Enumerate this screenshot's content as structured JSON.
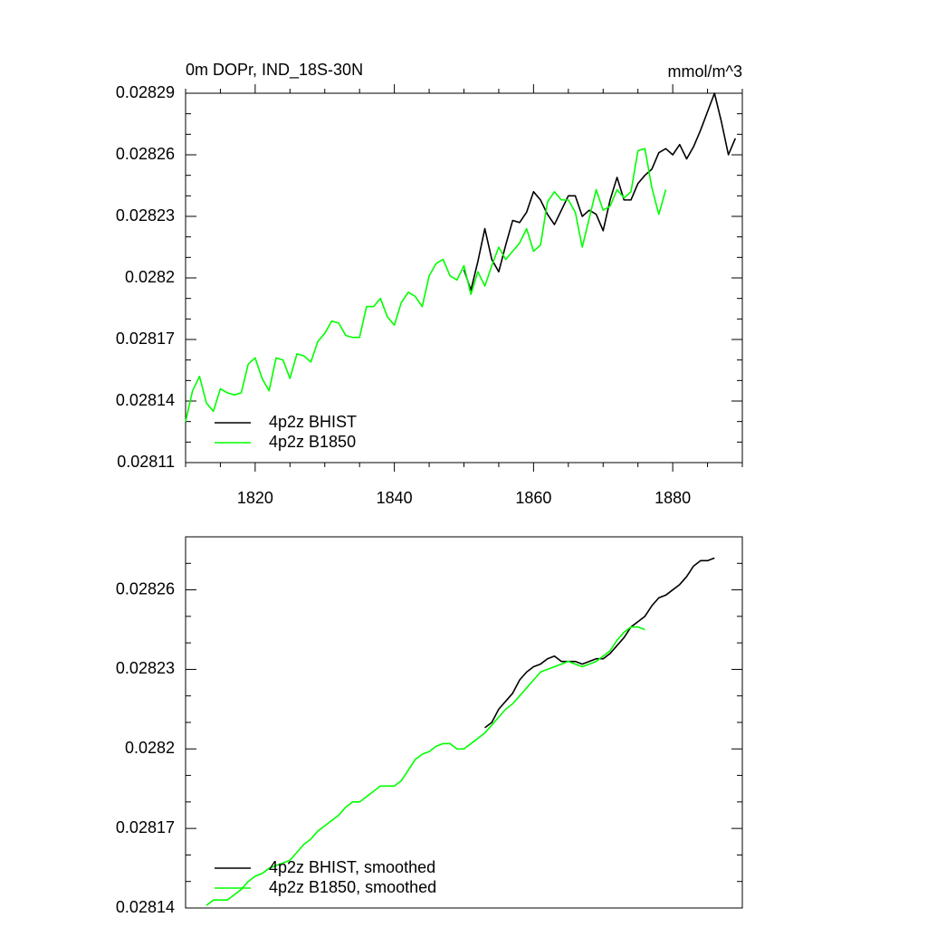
{
  "chart_data": [
    {
      "type": "line",
      "title": "0m DOPr, IND_18S-30N",
      "units_label": "mmol/m^3",
      "x": [
        1810,
        1811,
        1812,
        1813,
        1814,
        1815,
        1816,
        1817,
        1818,
        1819,
        1820,
        1821,
        1822,
        1823,
        1824,
        1825,
        1826,
        1827,
        1828,
        1829,
        1830,
        1831,
        1832,
        1833,
        1834,
        1835,
        1836,
        1837,
        1838,
        1839,
        1840,
        1841,
        1842,
        1843,
        1844,
        1845,
        1846,
        1847,
        1848,
        1849,
        1850,
        1851,
        1852,
        1853,
        1854,
        1855,
        1856,
        1857,
        1858,
        1859,
        1860,
        1861,
        1862,
        1863,
        1864,
        1865,
        1866,
        1867,
        1868,
        1869,
        1870,
        1871,
        1872,
        1873,
        1874,
        1875,
        1876,
        1877,
        1878,
        1879,
        1880,
        1881,
        1882,
        1883,
        1884,
        1885,
        1886,
        1887,
        1888,
        1889
      ],
      "series": [
        {
          "name": "4p2z BHIST",
          "color": "#000000",
          "values": [
            null,
            null,
            null,
            null,
            null,
            null,
            null,
            null,
            null,
            null,
            null,
            null,
            null,
            null,
            null,
            null,
            null,
            null,
            null,
            null,
            null,
            null,
            null,
            null,
            null,
            null,
            null,
            null,
            null,
            null,
            null,
            null,
            null,
            null,
            null,
            null,
            null,
            null,
            null,
            null,
            0.028204,
            0.028194,
            0.028208,
            0.028224,
            0.028209,
            0.028203,
            0.028216,
            0.028228,
            0.028227,
            0.028232,
            0.028242,
            0.028238,
            0.028231,
            0.028226,
            0.028233,
            0.02824,
            0.02824,
            0.02823,
            0.028233,
            0.028231,
            0.028223,
            0.028238,
            0.028249,
            0.028238,
            0.028238,
            0.028246,
            0.02825,
            0.028253,
            0.028261,
            0.028263,
            0.02826,
            0.028265,
            0.028258,
            0.028264,
            0.028272,
            0.028281,
            0.02829,
            0.028276,
            0.02826,
            0.028268
          ]
        },
        {
          "name": "4p2z B1850",
          "color": "#00ff00",
          "values": [
            0.02813,
            0.028145,
            0.028152,
            0.028139,
            0.028135,
            0.028146,
            0.028144,
            0.028143,
            0.028144,
            0.028158,
            0.028161,
            0.028151,
            0.028145,
            0.028161,
            0.02816,
            0.028151,
            0.028163,
            0.028162,
            0.028159,
            0.028169,
            0.028173,
            0.028179,
            0.028178,
            0.028172,
            0.028171,
            0.028171,
            0.028186,
            0.028186,
            0.02819,
            0.028181,
            0.028177,
            0.028188,
            0.028193,
            0.028191,
            0.028186,
            0.028201,
            0.028207,
            0.028209,
            0.028201,
            0.028199,
            0.028206,
            0.028192,
            0.028203,
            0.028196,
            0.028206,
            0.028215,
            0.028209,
            0.028213,
            0.028217,
            0.028224,
            0.028213,
            0.028216,
            0.028237,
            0.028242,
            0.028238,
            0.028238,
            0.028232,
            0.028215,
            0.028229,
            0.028243,
            0.028233,
            0.028235,
            0.028243,
            0.028239,
            0.028242,
            0.028262,
            0.028263,
            0.028244,
            0.028231,
            0.028243,
            null,
            null,
            null,
            null,
            null,
            null,
            null,
            null,
            null,
            null
          ]
        }
      ],
      "xlim": [
        1810,
        1890
      ],
      "xticks": [
        1820,
        1840,
        1860,
        1880
      ],
      "ylim": [
        0.02811,
        0.02829
      ],
      "yticks": [
        0.02811,
        0.02814,
        0.02817,
        0.0282,
        0.02823,
        0.02826,
        0.02829
      ],
      "legend": "lower left"
    },
    {
      "type": "line",
      "x": [
        1813,
        1814,
        1815,
        1816,
        1817,
        1818,
        1819,
        1820,
        1821,
        1822,
        1823,
        1824,
        1825,
        1826,
        1827,
        1828,
        1829,
        1830,
        1831,
        1832,
        1833,
        1834,
        1835,
        1836,
        1837,
        1838,
        1839,
        1840,
        1841,
        1842,
        1843,
        1844,
        1845,
        1846,
        1847,
        1848,
        1849,
        1850,
        1851,
        1852,
        1853,
        1854,
        1855,
        1856,
        1857,
        1858,
        1859,
        1860,
        1861,
        1862,
        1863,
        1864,
        1865,
        1866,
        1867,
        1868,
        1869,
        1870,
        1871,
        1872,
        1873,
        1874,
        1875,
        1876,
        1877,
        1878,
        1879,
        1880,
        1881,
        1882,
        1883,
        1884,
        1885,
        1886
      ],
      "series": [
        {
          "name": "4p2z BHIST, smoothed",
          "color": "#000000",
          "values": [
            null,
            null,
            null,
            null,
            null,
            null,
            null,
            null,
            null,
            null,
            null,
            null,
            null,
            null,
            null,
            null,
            null,
            null,
            null,
            null,
            null,
            null,
            null,
            null,
            null,
            null,
            null,
            null,
            null,
            null,
            null,
            null,
            null,
            null,
            null,
            null,
            null,
            null,
            null,
            null,
            0.028208,
            0.02821,
            0.028215,
            0.028218,
            0.028221,
            0.028226,
            0.028229,
            0.028231,
            0.028232,
            0.028234,
            0.028235,
            0.028233,
            0.028233,
            0.028233,
            0.028232,
            0.028233,
            0.028234,
            0.028234,
            0.028236,
            0.028239,
            0.028242,
            0.028246,
            0.028248,
            0.02825,
            0.028254,
            0.028257,
            0.028258,
            0.02826,
            0.028262,
            0.028265,
            0.028269,
            0.028271,
            0.028271,
            0.028272
          ]
        },
        {
          "name": "4p2z B1850, smoothed",
          "color": "#00ff00",
          "values": [
            0.028141,
            0.028143,
            0.028143,
            0.028143,
            0.028145,
            0.028147,
            0.02815,
            0.028152,
            0.028153,
            0.028155,
            0.028156,
            0.028157,
            0.028158,
            0.028161,
            0.028164,
            0.028166,
            0.028169,
            0.028171,
            0.028173,
            0.028175,
            0.028178,
            0.02818,
            0.02818,
            0.028182,
            0.028184,
            0.028186,
            0.028186,
            0.028186,
            0.028188,
            0.028192,
            0.028196,
            0.028198,
            0.028199,
            0.028201,
            0.028202,
            0.028202,
            0.0282,
            0.0282,
            0.028202,
            0.028204,
            0.028206,
            0.028209,
            0.028212,
            0.028215,
            0.028217,
            0.02822,
            0.028223,
            0.028226,
            0.028229,
            0.02823,
            0.028231,
            0.028232,
            0.028233,
            0.028232,
            0.028231,
            0.028232,
            0.028233,
            0.028235,
            0.028237,
            0.028241,
            0.028244,
            0.028246,
            0.028246,
            0.028245,
            null,
            null,
            null,
            null,
            null,
            null,
            null,
            null,
            null,
            null
          ]
        }
      ],
      "xlim": [
        1810,
        1890
      ],
      "ylim": [
        0.02814,
        0.02828
      ],
      "yticks": [
        0.02814,
        0.02817,
        0.0282,
        0.02823,
        0.02826
      ],
      "legend": "lower left"
    }
  ]
}
